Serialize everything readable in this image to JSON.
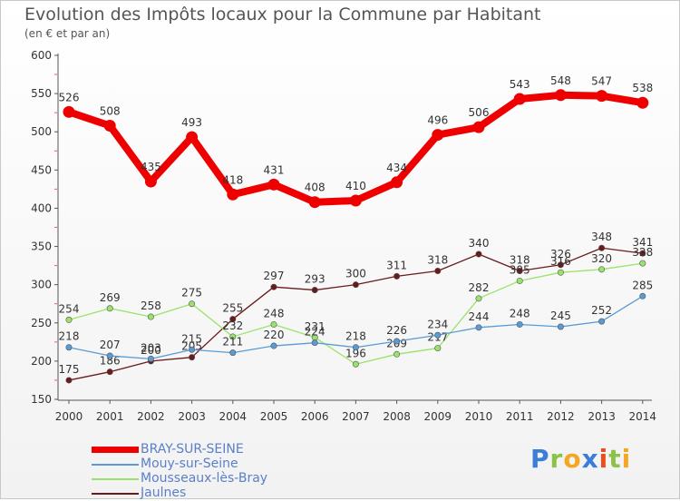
{
  "chart_data": {
    "type": "line",
    "title": "Evolution des Impôts locaux pour la Commune par Habitant",
    "subtitle": "(en € et par an)",
    "xlabel": "",
    "ylabel": "",
    "ylim": [
      150,
      600
    ],
    "yticks": [
      "150",
      "200",
      "250",
      "300",
      "350",
      "400",
      "450",
      "500",
      "550",
      "600"
    ],
    "categories": [
      "2000",
      "2001",
      "2002",
      "2003",
      "2004",
      "2005",
      "2006",
      "2007",
      "2008",
      "2009",
      "2010",
      "2011",
      "2012",
      "2013",
      "2014"
    ],
    "grid": false,
    "legend_position": "bottom-left",
    "series": [
      {
        "name": "BRAY-SUR-SEINE",
        "color": "#ee0000",
        "values": [
          526,
          508,
          435,
          493,
          418,
          431,
          408,
          410,
          434,
          496,
          506,
          543,
          548,
          547,
          538
        ]
      },
      {
        "name": "Mouy-sur-Seine",
        "color": "#5b9bd5",
        "values": [
          218,
          207,
          203,
          215,
          211,
          220,
          224,
          218,
          226,
          234,
          244,
          248,
          245,
          252,
          285
        ]
      },
      {
        "name": "Mousseaux-lès-Bray",
        "color": "#99e36b",
        "values": [
          254,
          269,
          258,
          275,
          232,
          248,
          231,
          196,
          209,
          217,
          282,
          305,
          316,
          320,
          328
        ]
      },
      {
        "name": "Jaulnes",
        "color": "#6b1a1a",
        "values": [
          175,
          186,
          200,
          205,
          255,
          297,
          293,
          300,
          311,
          318,
          340,
          318,
          326,
          348,
          341
        ]
      }
    ]
  },
  "logo": {
    "letters": [
      "P",
      "r",
      "o",
      "x",
      "i",
      "t",
      "i"
    ],
    "colors": [
      "#3b7dd8",
      "#8bc34a",
      "#f5a623",
      "#3b7dd8",
      "#e94e1b",
      "#8bc34a",
      "#f5a623"
    ]
  }
}
